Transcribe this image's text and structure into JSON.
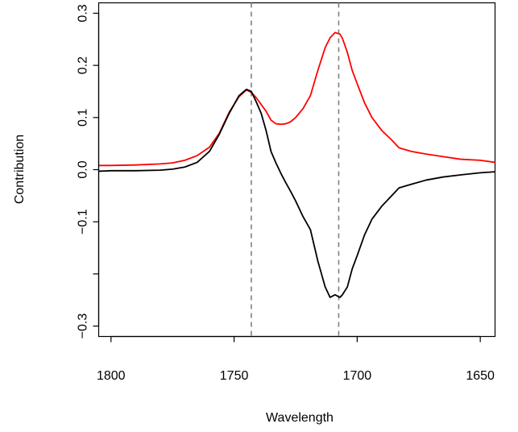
{
  "chart_data": {
    "type": "line",
    "title": "",
    "xlabel": "Wavelength",
    "ylabel": "Contribution",
    "xlim": [
      1805,
      1644
    ],
    "ylim": [
      -0.32,
      0.32
    ],
    "x_reversed": true,
    "x_ticks": [
      1800,
      1750,
      1700,
      1650
    ],
    "x_tick_labels": [
      "1800",
      "1750",
      "1700",
      "1650"
    ],
    "y_ticks": [
      -0.3,
      -0.1,
      0.0,
      0.1,
      0.2,
      0.3
    ],
    "y_tick_labels": [
      "−0.3",
      "−0.1",
      "0.0",
      "0.1",
      "0.2",
      "0.3"
    ],
    "y_minor_ticks": [
      -0.2
    ],
    "grid": false,
    "legend": "none",
    "vlines": [
      {
        "x": 1743,
        "color": "#808080",
        "style": "dashed"
      },
      {
        "x": 1707.5,
        "color": "#808080",
        "style": "dashed"
      }
    ],
    "series": [
      {
        "color": "#ff0000",
        "x": [
          1805,
          1800,
          1790,
          1780,
          1775,
          1770,
          1765,
          1760,
          1756,
          1752,
          1748,
          1745,
          1743,
          1741,
          1739,
          1737,
          1735,
          1733,
          1731,
          1729,
          1727,
          1725,
          1722,
          1719,
          1716,
          1713,
          1711,
          1709,
          1707,
          1706,
          1704,
          1702,
          1700,
          1697,
          1694,
          1690,
          1686,
          1683,
          1678,
          1672,
          1665,
          1658,
          1650,
          1644
        ],
        "y": [
          0.008,
          0.008,
          0.009,
          0.011,
          0.013,
          0.018,
          0.027,
          0.043,
          0.07,
          0.11,
          0.14,
          0.153,
          0.148,
          0.138,
          0.125,
          0.112,
          0.095,
          0.088,
          0.087,
          0.088,
          0.092,
          0.1,
          0.117,
          0.142,
          0.19,
          0.234,
          0.253,
          0.263,
          0.26,
          0.252,
          0.225,
          0.19,
          0.165,
          0.128,
          0.1,
          0.075,
          0.057,
          0.042,
          0.035,
          0.03,
          0.025,
          0.02,
          0.018,
          0.014
        ]
      },
      {
        "color": "#000000",
        "x": [
          1805,
          1800,
          1790,
          1780,
          1775,
          1770,
          1765,
          1760,
          1756,
          1752,
          1748,
          1745,
          1743,
          1741,
          1739,
          1737,
          1735,
          1733,
          1731,
          1729,
          1727,
          1725,
          1722,
          1719,
          1716,
          1713,
          1711,
          1709,
          1707,
          1706,
          1704,
          1702,
          1700,
          1697,
          1694,
          1690,
          1686,
          1683,
          1678,
          1672,
          1665,
          1658,
          1650,
          1644
        ],
        "y": [
          -0.003,
          -0.002,
          -0.002,
          -0.001,
          0.001,
          0.005,
          0.014,
          0.035,
          0.068,
          0.108,
          0.142,
          0.154,
          0.15,
          0.13,
          0.108,
          0.075,
          0.035,
          0.013,
          -0.007,
          -0.025,
          -0.042,
          -0.06,
          -0.09,
          -0.115,
          -0.175,
          -0.225,
          -0.245,
          -0.24,
          -0.245,
          -0.24,
          -0.225,
          -0.19,
          -0.165,
          -0.125,
          -0.095,
          -0.07,
          -0.05,
          -0.035,
          -0.028,
          -0.02,
          -0.014,
          -0.01,
          -0.006,
          -0.004
        ]
      }
    ]
  }
}
